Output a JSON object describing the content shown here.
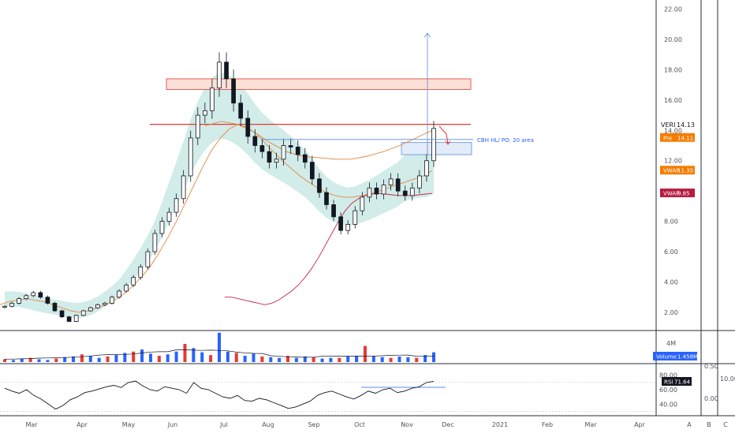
{
  "chart_data": [
    {
      "type": "candlestick",
      "pane": "price",
      "symbol_label": "VERI",
      "last_price_label": "14.13",
      "x_labels": [
        "Mar",
        "Apr",
        "May",
        "Jun",
        "Jul",
        "Aug",
        "Sep",
        "Oct",
        "Nov",
        "Dec",
        "2021",
        "Feb",
        "Mar",
        "Apr"
      ],
      "y_ticks": [
        "22.00",
        "20.00",
        "18.00",
        "16.00",
        "14.00",
        "12.00",
        "10.00",
        "8.00",
        "6.00",
        "4.00",
        "2.00"
      ],
      "ylim": [
        0.8,
        22.6
      ],
      "badges": [
        {
          "label": "Pre",
          "value": "14.11",
          "color": "#f57c00"
        },
        {
          "label": "VWAP",
          "value": "11.35",
          "color": "#f57c00"
        },
        {
          "label": "VWAP",
          "value": "9.85",
          "color": "#b71c42"
        }
      ],
      "annotation": "CBH HL/ PO: 20 area",
      "resistance_line": 14.4,
      "resistance_zone": [
        16.7,
        17.4
      ],
      "support_zone": [
        12.4,
        13.2
      ],
      "target_arrow_top": 20.4,
      "closes": [
        2.4,
        2.6,
        2.9,
        3.1,
        3.3,
        3.0,
        2.6,
        2.1,
        1.7,
        1.4,
        1.8,
        2.1,
        2.3,
        2.5,
        2.6,
        3.0,
        3.4,
        3.8,
        4.3,
        5.0,
        6.0,
        7.2,
        8.0,
        8.6,
        9.5,
        11.0,
        13.5,
        15.0,
        15.3,
        16.8,
        18.5,
        17.4,
        15.8,
        14.8,
        13.6,
        13.0,
        12.6,
        11.9,
        12.1,
        13.0,
        12.9,
        12.4,
        11.9,
        10.8,
        9.9,
        9.1,
        8.3,
        7.4,
        7.8,
        8.7,
        9.6,
        10.2,
        9.8,
        10.4,
        10.8,
        10.0,
        9.7,
        10.2,
        11.0,
        12.0,
        14.13
      ],
      "vwap_series": [
        {
          "color": "#e2883f",
          "values": [
            2.5,
            2.7,
            2.8,
            2.9,
            2.8,
            2.7,
            2.5,
            2.3,
            2.1,
            2.0,
            2.1,
            2.3,
            2.5,
            2.8,
            3.2,
            3.7,
            4.3,
            5.0,
            5.9,
            6.9,
            8.0,
            9.2,
            10.4,
            11.6,
            12.7,
            13.5,
            14.1,
            14.4,
            14.2,
            13.8,
            13.2,
            12.6,
            12.0,
            11.5,
            11.0,
            10.6,
            10.2,
            9.9,
            9.7,
            9.6,
            9.6,
            9.7,
            9.8,
            10.0,
            10.2,
            10.4,
            10.6,
            10.8,
            11.0,
            11.35
          ]
        },
        {
          "color": "#c62848",
          "values": [
            3.0,
            3.0,
            2.9,
            2.8,
            2.7,
            2.6,
            2.5,
            2.6,
            2.8,
            3.1,
            3.4,
            3.8,
            4.3,
            4.9,
            5.6,
            6.4,
            7.2,
            8.0,
            8.7,
            9.2,
            9.5,
            9.7,
            9.8,
            9.85,
            9.8,
            9.75,
            9.7,
            9.7,
            9.7,
            9.75,
            9.8,
            9.85
          ]
        },
        {
          "color": "#e2883f",
          "values": [
            14.3,
            14.6,
            14.4,
            13.9,
            13.2,
            12.6,
            12.3,
            12.2,
            12.1,
            12.1,
            12.3,
            12.6,
            13.0,
            13.5,
            14.0
          ]
        }
      ]
    },
    {
      "type": "bar",
      "pane": "volume",
      "series_label": "Volume",
      "value_label": "1.458M",
      "y_ticks": [
        "4M"
      ],
      "values": [
        0.4,
        0.3,
        0.5,
        0.6,
        0.4,
        0.3,
        0.5,
        0.7,
        0.8,
        1.1,
        0.9,
        0.6,
        0.8,
        1.0,
        1.3,
        1.5,
        1.8,
        1.2,
        0.9,
        1.1,
        1.5,
        2.6,
        2.0,
        1.4,
        1.0,
        4.2,
        1.5,
        1.3,
        0.9,
        1.2,
        0.8,
        0.7,
        0.6,
        0.9,
        0.6,
        0.8,
        0.7,
        0.5,
        0.6,
        0.6,
        0.8,
        0.9,
        2.3,
        0.9,
        0.7,
        0.6,
        0.8,
        0.7,
        0.6,
        1.0,
        1.4
      ]
    },
    {
      "type": "line",
      "pane": "rsi",
      "series_label": "RSI",
      "value_label": "71.64",
      "y_ticks_left": [
        "80.00",
        "60.00",
        "40.00"
      ],
      "y_ticks_right": [
        "0.50",
        "0.00"
      ],
      "values": [
        62,
        58,
        55,
        60,
        52,
        47,
        40,
        33,
        38,
        46,
        50,
        56,
        58,
        61,
        64,
        66,
        63,
        70,
        72,
        65,
        60,
        58,
        64,
        62,
        60,
        55,
        70,
        62,
        60,
        55,
        50,
        48,
        52,
        45,
        44,
        48,
        46,
        42,
        38,
        34,
        36,
        40,
        44,
        52,
        56,
        58,
        54,
        50,
        47,
        52,
        58,
        55,
        60,
        62,
        56,
        58,
        62,
        64,
        70,
        71.64
      ]
    },
    {
      "type": "axis",
      "pane": "right-rail",
      "right_labels": [
        "10.00"
      ],
      "rail_labels": [
        "A",
        "B",
        "C"
      ]
    }
  ]
}
